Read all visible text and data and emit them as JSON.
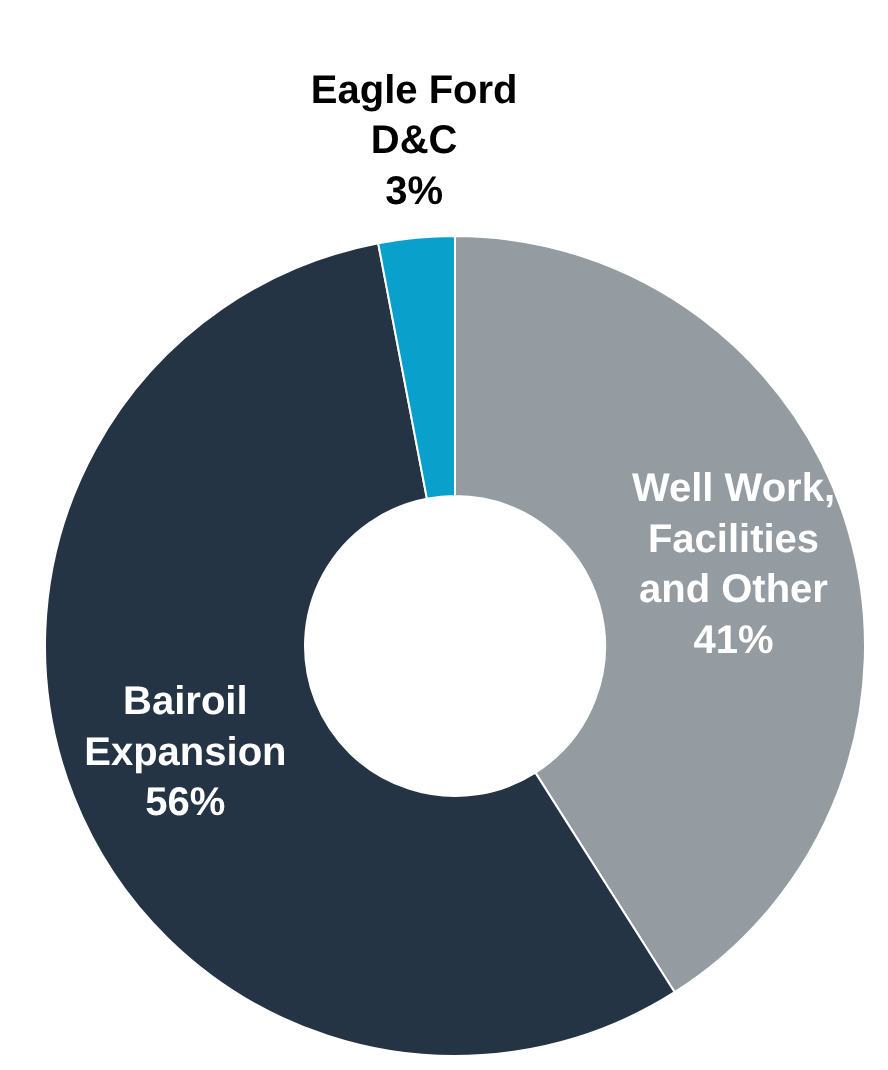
{
  "chart_data": {
    "type": "donut",
    "categories": [
      "Well Work,\nFacilities\nand Other",
      "Bairoil\nExpansion",
      "Eagle Ford\nD&C"
    ],
    "values": [
      41,
      56,
      3
    ],
    "value_labels": [
      "41%",
      "56%",
      "3%"
    ],
    "colors": [
      "#949ba1",
      "#253445",
      "#0aa0cc"
    ]
  }
}
